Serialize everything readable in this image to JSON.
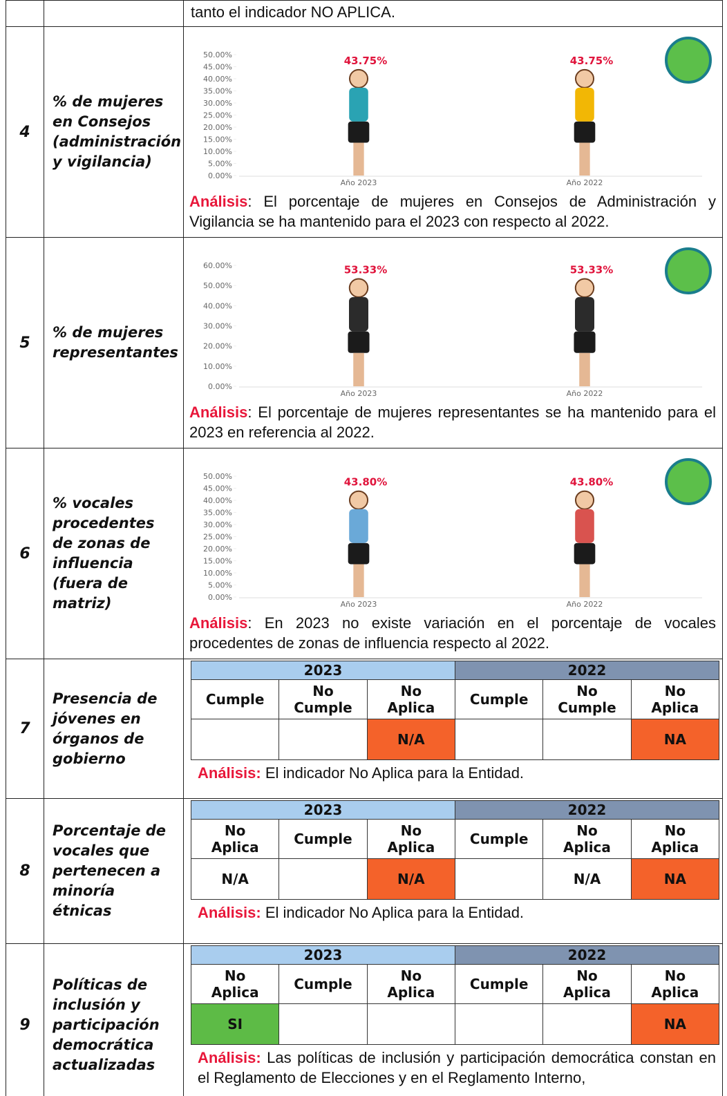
{
  "rows": [
    {
      "content": "tanto el indicador NO APLICA."
    },
    {
      "number": "4",
      "indicator": "% de mujeres en Consejos (administración y vigilancia)",
      "chart_data": {
        "type": "pictograph",
        "categories": [
          "Año 2023",
          "Año 2022"
        ],
        "values": [
          43.75,
          43.75
        ],
        "value_labels": [
          "43.75%",
          "43.75%"
        ],
        "colors": [
          "#2aa3b3",
          "#f2b705"
        ],
        "ylim": [
          0,
          50
        ],
        "yticks": [
          {
            "value": 0,
            "label": "0.00%"
          },
          {
            "value": 5,
            "label": "5.00%"
          },
          {
            "value": 10,
            "label": "10.00%"
          },
          {
            "value": 15,
            "label": "15.00%"
          },
          {
            "value": 20,
            "label": "20.00%"
          },
          {
            "value": 25,
            "label": "25.00%"
          },
          {
            "value": 30,
            "label": "30.00%"
          },
          {
            "value": 35,
            "label": "35.00%"
          },
          {
            "value": 40,
            "label": "40.00%"
          },
          {
            "value": 45,
            "label": "45.00%"
          },
          {
            "value": 50,
            "label": "50.00%"
          }
        ]
      },
      "analysis_label": "Análisis",
      "analysis": ": El porcentaje de mujeres en Consejos de Administración y Vigilancia se ha mantenido para el 2023 con respecto al 2022."
    },
    {
      "number": "5",
      "indicator": "% de mujeres representantes",
      "chart_data": {
        "type": "pictograph",
        "categories": [
          "Año 2023",
          "Año 2022"
        ],
        "values": [
          53.33,
          53.33
        ],
        "value_labels": [
          "53.33%",
          "53.33%"
        ],
        "colors": [
          "#2b2b2b",
          "#2b2b2b"
        ],
        "ylim": [
          0,
          60
        ],
        "yticks": [
          {
            "value": 0,
            "label": "0.00%"
          },
          {
            "value": 10,
            "label": "10.00%"
          },
          {
            "value": 20,
            "label": "20.00%"
          },
          {
            "value": 30,
            "label": "30.00%"
          },
          {
            "value": 40,
            "label": "40.00%"
          },
          {
            "value": 50,
            "label": "50.00%"
          },
          {
            "value": 60,
            "label": "60.00%"
          }
        ]
      },
      "analysis_label": "Análisis",
      "analysis": ": El porcentaje de mujeres representantes se ha mantenido para el 2023 en referencia al 2022."
    },
    {
      "number": "6",
      "indicator": "% vocales procedentes de zonas de influencia (fuera de matriz)",
      "chart_data": {
        "type": "pictograph",
        "categories": [
          "Año 2023",
          "Año 2022"
        ],
        "values": [
          43.8,
          43.8
        ],
        "value_labels": [
          "43.80%",
          "43.80%"
        ],
        "colors": [
          "#6aa9d8",
          "#d9534f"
        ],
        "ylim": [
          0,
          50
        ],
        "yticks": [
          {
            "value": 0,
            "label": "0.00%"
          },
          {
            "value": 5,
            "label": "5.00%"
          },
          {
            "value": 10,
            "label": "10.00%"
          },
          {
            "value": 15,
            "label": "15.00%"
          },
          {
            "value": 20,
            "label": "20.00%"
          },
          {
            "value": 25,
            "label": "25.00%"
          },
          {
            "value": 30,
            "label": "30.00%"
          },
          {
            "value": 35,
            "label": "35.00%"
          },
          {
            "value": 40,
            "label": "40.00%"
          },
          {
            "value": 45,
            "label": "45.00%"
          },
          {
            "value": 50,
            "label": "50.00%"
          }
        ]
      },
      "analysis_label": "Análisis",
      "analysis": ": En 2023 no existe variación en el porcentaje de vocales procedentes de zonas de influencia respecto al 2022."
    },
    {
      "number": "7",
      "indicator": "Presencia de jóvenes en órganos de gobierno",
      "table": {
        "years": [
          "2023",
          "2022"
        ],
        "headers": [
          "Cumple",
          "No Cumple",
          "No Aplica",
          "Cumple",
          "No Cumple",
          "No Aplica"
        ],
        "cells": [
          null,
          null,
          "N/A",
          null,
          null,
          "NA"
        ],
        "cell_colors": [
          null,
          null,
          "#f4622a",
          null,
          null,
          "#f4622a"
        ]
      },
      "analysis_label": "Análisis:",
      "analysis": " El indicador No Aplica para la Entidad."
    },
    {
      "number": "8",
      "indicator": "Porcentaje de vocales que pertenecen a minoría étnicas",
      "table": {
        "years": [
          "2023",
          "2022"
        ],
        "headers": [
          "No Aplica",
          "Cumple",
          "No Aplica",
          "Cumple",
          "No Aplica",
          "No Aplica"
        ],
        "cells": [
          "N/A",
          null,
          "N/A",
          null,
          "N/A",
          "NA"
        ],
        "cell_colors": [
          null,
          null,
          "#f4622a",
          null,
          null,
          "#f4622a"
        ]
      },
      "analysis_label": "Análisis:",
      "analysis": " El indicador No Aplica para la Entidad."
    },
    {
      "number": "9",
      "indicator": "Políticas de inclusión y participación democrática actualizadas",
      "table": {
        "years": [
          "2023",
          "2022"
        ],
        "headers": [
          "No Aplica",
          "Cumple",
          "No Aplica",
          "Cumple",
          "No Aplica",
          "No Aplica"
        ],
        "cells": [
          "SI",
          null,
          null,
          null,
          null,
          "NA"
        ],
        "cell_colors": [
          "#5dbb46",
          null,
          null,
          null,
          null,
          "#f4622a"
        ]
      },
      "analysis_label": "Análisis:",
      "analysis": " Las políticas de inclusión y participación democrática constan en el Reglamento de Elecciones y en el Reglamento Interno,"
    }
  ]
}
